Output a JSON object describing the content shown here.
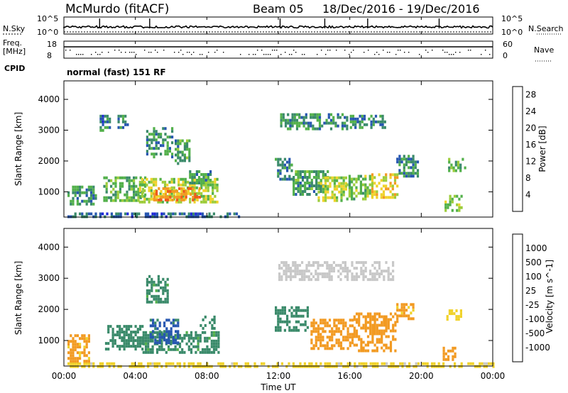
{
  "header": {
    "station": "McMurdo (fitACF)",
    "beam": "Beam 05",
    "date_range": "18/Dec/2016 - 19/Dec/2016"
  },
  "noise_panel": {
    "left_label": "N.Sky",
    "right_label": "N.Search",
    "left_ticks": [
      "10^5",
      "10^0"
    ],
    "right_ticks": [
      "10^5",
      "10^0"
    ]
  },
  "freq_panel": {
    "left_label": "Freq.",
    "left_unit": "[MHz]",
    "left_ticks": [
      "18",
      "8"
    ],
    "right_label": "Nave",
    "right_ticks": [
      "60",
      "0"
    ]
  },
  "cpid": {
    "label": "CPID",
    "value": "normal (fast) 151 RF"
  },
  "colors": {
    "power": [
      "#1e28d8",
      "#2656b0",
      "#3a8a6a",
      "#52b04a",
      "#9ccc3a",
      "#f0d22a",
      "#f29a22",
      "#ef5a1c",
      "#e01010"
    ],
    "velocity": [
      "#e01212",
      "#ef5a1c",
      "#f29a22",
      "#f0d22a",
      "#c8c8c8",
      "#52b04a",
      "#3a8a6a",
      "#2656b0",
      "#1e28d8"
    ]
  },
  "x_axis": {
    "label": "Time UT",
    "ticks": [
      "00:00",
      "04:00",
      "08:00",
      "12:00",
      "16:00",
      "20:00",
      "00:00"
    ]
  },
  "chart_data": [
    {
      "type": "heatmap",
      "title": "",
      "ylabel": "Slant Range [km]",
      "xlabel": "",
      "x_range_hours": [
        0,
        24
      ],
      "ylim": [
        180,
        4600
      ],
      "y_ticks": [
        "1000",
        "2000",
        "3000",
        "4000"
      ],
      "y_tick_values": [
        1000,
        2000,
        3000,
        4000
      ],
      "colorbar_label": "Power [dB]",
      "colorbar_ticks": [
        "28",
        "24",
        "20",
        "16",
        "12",
        "8",
        "4"
      ],
      "colorbar_tick_values": [
        28,
        24,
        20,
        16,
        12,
        8,
        4
      ],
      "colorbar_range": [
        0,
        30
      ],
      "features": [
        {
          "t0": 0.2,
          "t1": 9.8,
          "r0": 180,
          "r1": 330,
          "v": 6
        },
        {
          "t0": 0.2,
          "t1": 1.8,
          "r0": 600,
          "r1": 1200,
          "v": 9
        },
        {
          "t0": 2.2,
          "t1": 4.6,
          "r0": 700,
          "r1": 1500,
          "v": 11
        },
        {
          "t0": 4.2,
          "t1": 8.6,
          "r0": 650,
          "r1": 1450,
          "v": 15
        },
        {
          "t0": 5.0,
          "t1": 7.6,
          "r0": 700,
          "r1": 1150,
          "v": 22
        },
        {
          "t0": 4.6,
          "t1": 6.0,
          "r0": 2100,
          "r1": 3100,
          "v": 9
        },
        {
          "t0": 6.2,
          "t1": 7.0,
          "r0": 1900,
          "r1": 2700,
          "v": 10
        },
        {
          "t0": 7.0,
          "t1": 8.2,
          "r0": 1300,
          "r1": 1700,
          "v": 10
        },
        {
          "t0": 2.0,
          "t1": 2.6,
          "r0": 3000,
          "r1": 3500,
          "v": 7
        },
        {
          "t0": 3.0,
          "t1": 3.6,
          "r0": 3100,
          "r1": 3500,
          "v": 8
        },
        {
          "t0": 12.1,
          "t1": 15.8,
          "r0": 3000,
          "r1": 3550,
          "v": 9
        },
        {
          "t0": 16.0,
          "t1": 18.0,
          "r0": 3050,
          "r1": 3500,
          "v": 8
        },
        {
          "t0": 11.8,
          "t1": 12.8,
          "r0": 1400,
          "r1": 2100,
          "v": 8
        },
        {
          "t0": 12.8,
          "t1": 14.8,
          "r0": 900,
          "r1": 1700,
          "v": 10
        },
        {
          "t0": 14.2,
          "t1": 15.8,
          "r0": 700,
          "r1": 1500,
          "v": 16
        },
        {
          "t0": 15.8,
          "t1": 17.2,
          "r0": 800,
          "r1": 1550,
          "v": 13
        },
        {
          "t0": 17.2,
          "t1": 18.6,
          "r0": 800,
          "r1": 1600,
          "v": 18
        },
        {
          "t0": 18.6,
          "t1": 19.8,
          "r0": 1500,
          "r1": 2200,
          "v": 9
        },
        {
          "t0": 21.3,
          "t1": 22.2,
          "r0": 400,
          "r1": 900,
          "v": 14
        },
        {
          "t0": 21.5,
          "t1": 22.4,
          "r0": 1700,
          "r1": 2100,
          "v": 10
        }
      ]
    },
    {
      "type": "heatmap",
      "title": "",
      "ylabel": "Slant Range [km]",
      "xlabel": "Time UT",
      "x_range_hours": [
        0,
        24
      ],
      "ylim": [
        180,
        4600
      ],
      "y_ticks": [
        "1000",
        "2000",
        "3000",
        "4000"
      ],
      "y_tick_values": [
        1000,
        2000,
        3000,
        4000
      ],
      "colorbar_label": "Velocity [m s^-1]",
      "colorbar_ticks": [
        "1000",
        "500",
        "100",
        "25",
        "-25",
        "-100",
        "-500",
        "-1000"
      ],
      "colorbar_tick_values": [
        1000,
        500,
        100,
        25,
        -25,
        -100,
        -500,
        -1000
      ],
      "features": [
        {
          "t0": 0.2,
          "t1": 24.0,
          "r0": 180,
          "r1": 300,
          "v": -40
        },
        {
          "t0": 0.2,
          "t1": 1.4,
          "r0": 300,
          "r1": 1200,
          "v": -150
        },
        {
          "t0": 2.3,
          "t1": 4.4,
          "r0": 700,
          "r1": 1500,
          "v": 200
        },
        {
          "t0": 4.4,
          "t1": 8.6,
          "r0": 600,
          "r1": 1300,
          "v": 150
        },
        {
          "t0": 4.8,
          "t1": 6.4,
          "r0": 900,
          "r1": 1700,
          "v": 600
        },
        {
          "t0": 7.6,
          "t1": 8.4,
          "r0": 1400,
          "r1": 1800,
          "v": 200
        },
        {
          "t0": 4.6,
          "t1": 5.8,
          "r0": 2200,
          "r1": 3100,
          "v": 150
        },
        {
          "t0": 12.0,
          "t1": 18.4,
          "r0": 3000,
          "r1": 3550,
          "v": 10
        },
        {
          "t0": 11.8,
          "t1": 13.6,
          "r0": 1300,
          "r1": 2100,
          "v": 200
        },
        {
          "t0": 13.8,
          "t1": 16.2,
          "r0": 700,
          "r1": 1700,
          "v": -300
        },
        {
          "t0": 16.2,
          "t1": 18.6,
          "r0": 700,
          "r1": 1900,
          "v": -250
        },
        {
          "t0": 18.6,
          "t1": 19.6,
          "r0": 1600,
          "r1": 2200,
          "v": -150
        },
        {
          "t0": 21.2,
          "t1": 22.0,
          "r0": 400,
          "r1": 800,
          "v": -200
        },
        {
          "t0": 21.4,
          "t1": 22.2,
          "r0": 1700,
          "r1": 2000,
          "v": -60
        }
      ]
    }
  ]
}
